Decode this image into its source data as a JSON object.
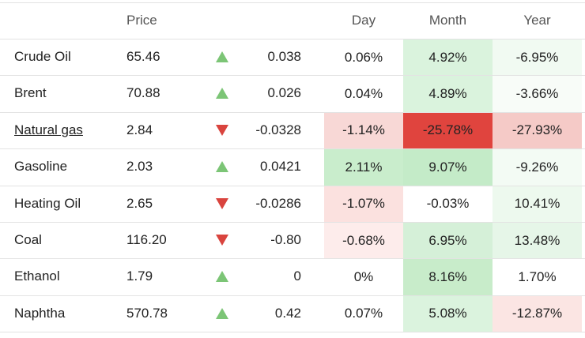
{
  "header": {
    "price": "Price",
    "day": "Day",
    "month": "Month",
    "year": "Year"
  },
  "rows": [
    {
      "name": "Crude Oil",
      "price": "65.46",
      "trend": "up",
      "change": "0.038",
      "day": "0.06%",
      "month": "4.92%",
      "year": "-6.95%",
      "colors": {
        "month": "#daf3dd",
        "year": "#f1faf2"
      }
    },
    {
      "name": "Brent",
      "price": "70.88",
      "trend": "up",
      "change": "0.026",
      "day": "0.04%",
      "month": "4.89%",
      "year": "-3.66%",
      "colors": {
        "month": "#daf3dd",
        "year": "#f8fcf8"
      }
    },
    {
      "name": "Natural gas",
      "link": true,
      "price": "2.84",
      "trend": "down",
      "change": "-0.0328",
      "day": "-1.14%",
      "month": "-25.78%",
      "year": "-27.93%",
      "colors": {
        "day": "#f8d8d6",
        "month": "#e0443e",
        "year": "#f5cac7"
      }
    },
    {
      "name": "Gasoline",
      "price": "2.03",
      "trend": "up",
      "change": "0.0421",
      "day": "2.11%",
      "month": "9.07%",
      "year": "-9.26%",
      "colors": {
        "day": "#c9edcc",
        "month": "#c4ebc8",
        "year": "#f3fbf4"
      }
    },
    {
      "name": "Heating Oil",
      "price": "2.65",
      "trend": "down",
      "change": "-0.0286",
      "day": "-1.07%",
      "month": "-0.03%",
      "year": "10.41%",
      "colors": {
        "day": "#fbe1df",
        "year": "#edf9ee"
      }
    },
    {
      "name": "Coal",
      "price": "116.20",
      "trend": "down",
      "change": "-0.80",
      "day": "-0.68%",
      "month": "6.95%",
      "year": "13.48%",
      "colors": {
        "day": "#fdeceb",
        "month": "#d5f0d8",
        "year": "#e6f6e8"
      }
    },
    {
      "name": "Ethanol",
      "price": "1.79",
      "trend": "up",
      "change": "0",
      "day": "0%",
      "month": "8.16%",
      "year": "1.70%",
      "colors": {
        "month": "#c8ecca"
      }
    },
    {
      "name": "Naphtha",
      "price": "570.78",
      "trend": "up",
      "change": "0.42",
      "day": "0.07%",
      "month": "5.08%",
      "year": "-12.87%",
      "colors": {
        "month": "#dbf3de",
        "year": "#fbe5e3"
      }
    }
  ]
}
